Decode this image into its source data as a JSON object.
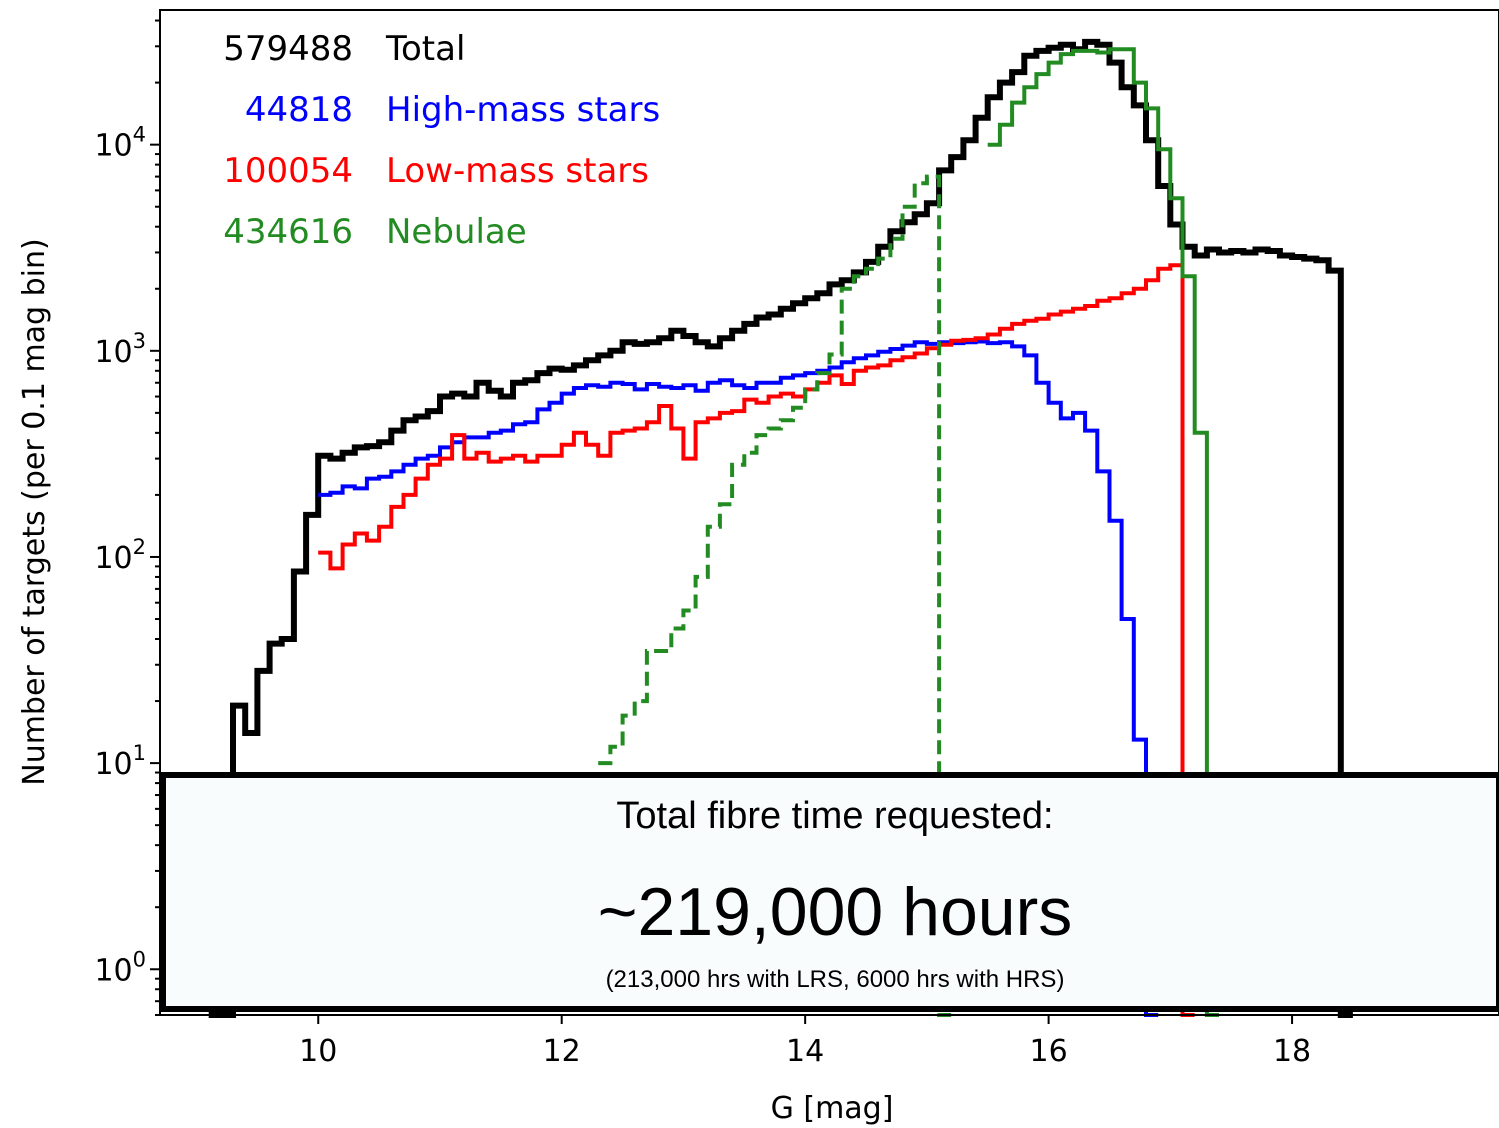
{
  "chart_data": {
    "type": "line",
    "xlabel": "G [mag]",
    "ylabel": "Number of targets (per 0.1 mag bin)",
    "xlim": [
      8.7,
      19.7
    ],
    "ylim": [
      0.6,
      45000
    ],
    "yscale": "log",
    "xticks": [
      10,
      12,
      14,
      16,
      18
    ],
    "yticks": [
      {
        "value": 1,
        "base": "10",
        "exp": "0"
      },
      {
        "value": 10,
        "base": "10",
        "exp": "1"
      },
      {
        "value": 100,
        "base": "10",
        "exp": "2"
      },
      {
        "value": 1000,
        "base": "10",
        "exp": "3"
      },
      {
        "value": 10000,
        "base": "10",
        "exp": "4"
      }
    ],
    "legend_placement": "top-left",
    "legend": [
      {
        "count": "579488",
        "label": "Total",
        "color": "#000000"
      },
      {
        "count": "44818",
        "label": "High-mass stars",
        "color": "#0000ff"
      },
      {
        "count": "100054",
        "label": "Low-mass stars",
        "color": "#ff0000"
      },
      {
        "count": "434616",
        "label": "Nebulae",
        "color": "#228b22"
      }
    ],
    "series": [
      {
        "name": "Total",
        "color": "#000000",
        "style": "solid",
        "width": 6,
        "step_width": 0.1,
        "x_start": 9.1,
        "values": [
          0.6,
          0.6,
          19,
          14,
          28,
          38,
          40,
          85,
          160,
          310,
          300,
          320,
          340,
          345,
          360,
          410,
          460,
          480,
          510,
          600,
          620,
          600,
          700,
          640,
          600,
          700,
          720,
          780,
          820,
          810,
          850,
          900,
          950,
          1000,
          1100,
          1080,
          1100,
          1150,
          1250,
          1180,
          1100,
          1050,
          1150,
          1250,
          1350,
          1450,
          1500,
          1600,
          1700,
          1800,
          1900,
          2100,
          2200,
          2400,
          2700,
          3200,
          3800,
          4200,
          4600,
          5200,
          7500,
          8700,
          10500,
          13500,
          17000,
          20000,
          22500,
          27000,
          28500,
          29500,
          30500,
          29000,
          31500,
          30500,
          25000,
          19000,
          15500,
          10500,
          6300,
          4100,
          3200,
          2900,
          3100,
          3000,
          3050,
          3000,
          3100,
          3050,
          2900,
          2850,
          2800,
          2750,
          2450,
          0.6
        ]
      },
      {
        "name": "High-mass stars",
        "color": "#0000ff",
        "style": "solid",
        "width": 4,
        "step_width": 0.1,
        "x_start": 10.0,
        "values": [
          200,
          205,
          220,
          215,
          240,
          245,
          260,
          280,
          300,
          310,
          340,
          360,
          380,
          380,
          400,
          410,
          440,
          450,
          520,
          560,
          620,
          660,
          680,
          670,
          700,
          690,
          650,
          690,
          670,
          660,
          680,
          640,
          700,
          720,
          680,
          660,
          700,
          700,
          740,
          760,
          780,
          800,
          830,
          880,
          920,
          950,
          990,
          1020,
          1060,
          1100,
          1080,
          1100,
          1090,
          1100,
          1110,
          1090,
          1100,
          1050,
          950,
          700,
          560,
          470,
          500,
          410,
          260,
          150,
          50,
          13,
          0.6
        ]
      },
      {
        "name": "Low-mass stars",
        "color": "#ff0000",
        "style": "solid",
        "width": 4,
        "step_width": 0.1,
        "x_start": 10.0,
        "values": [
          105,
          88,
          115,
          130,
          120,
          140,
          175,
          200,
          240,
          280,
          300,
          390,
          300,
          320,
          290,
          300,
          310,
          290,
          310,
          310,
          350,
          400,
          350,
          310,
          400,
          410,
          420,
          450,
          540,
          420,
          300,
          450,
          470,
          500,
          510,
          580,
          560,
          600,
          620,
          600,
          650,
          700,
          760,
          690,
          800,
          830,
          850,
          900,
          930,
          970,
          1030,
          1070,
          1120,
          1130,
          1150,
          1200,
          1280,
          1350,
          1400,
          1430,
          1500,
          1550,
          1600,
          1650,
          1750,
          1800,
          1900,
          2000,
          2200,
          2500,
          2600,
          0.6
        ]
      },
      {
        "name": "Nebulae (dashed)",
        "color": "#228b22",
        "style": "dashed",
        "width": 4,
        "step_width": 0.1,
        "x_start": 12.3,
        "values": [
          10,
          12,
          17,
          20,
          35,
          35,
          45,
          55,
          80,
          140,
          180,
          280,
          320,
          390,
          420,
          460,
          530,
          650,
          780,
          960,
          2000,
          2300,
          2500,
          2800,
          3500,
          5000,
          6500,
          7000,
          0.6
        ]
      },
      {
        "name": "Nebulae (solid)",
        "color": "#228b22",
        "style": "solid",
        "width": 4,
        "step_width": 0.1,
        "x_start": 15.5,
        "values": [
          10000,
          12500,
          16000,
          19000,
          22000,
          25000,
          27500,
          28500,
          28500,
          28000,
          29000,
          29000,
          20000,
          15000,
          9500,
          5500,
          2300,
          400,
          0.6
        ]
      }
    ]
  },
  "annotation": {
    "title": "Total fibre time requested:",
    "value": "~219,000 hours",
    "detail": "(213,000 hrs with LRS, 6000 hrs with HRS)"
  }
}
